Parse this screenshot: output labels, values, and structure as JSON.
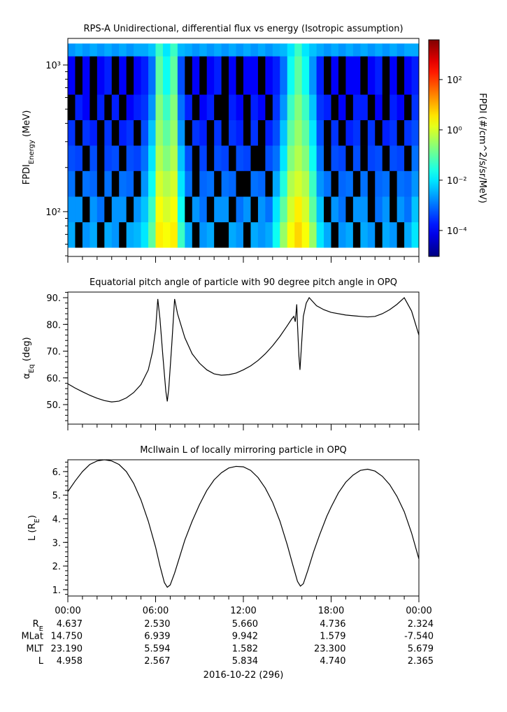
{
  "chart_data": [
    {
      "type": "heatmap",
      "title": "RPS-A Unidirectional, differential flux vs energy (Isotropic assumption)",
      "ylabel": [
        {
          "text": "FPDI"
        },
        {
          "text": "Energy",
          "sub": true
        },
        {
          "text": " (MeV)"
        }
      ],
      "ylog": true,
      "ylim": [
        49.5,
        1517
      ],
      "yticks": [
        {
          "value": 100,
          "label": "10²"
        },
        {
          "value": 1000,
          "label": "10³"
        }
      ],
      "xlim": [
        0,
        24
      ],
      "xticks": [
        0,
        6,
        12,
        18,
        24
      ],
      "xminor": 6,
      "time_bins": [
        0,
        0.5,
        1,
        1.5,
        2,
        2.5,
        3,
        3.5,
        4,
        4.5,
        5,
        5.5,
        6,
        6.5,
        7,
        7.5,
        8,
        8.5,
        9,
        9.5,
        10,
        10.5,
        11,
        11.5,
        12,
        12.5,
        13,
        13.5,
        14,
        14.5,
        15,
        15.5,
        16,
        16.5,
        17,
        17.5,
        18,
        18.5,
        19,
        19.5,
        20,
        20.5,
        21,
        21.5,
        22,
        22.5,
        23,
        23.5,
        24
      ],
      "energy_bins": [
        57,
        85,
        127,
        190,
        283,
        422,
        630,
        1150,
        1400
      ],
      "null_color": "#000000",
      "values": [
        [
          0.003,
          null,
          0.002,
          0.003,
          null,
          0.003,
          0.002,
          null,
          0.003,
          0.004,
          0.01,
          0.1,
          3,
          2,
          3,
          0.05,
          0.003,
          null,
          0.002,
          0.003,
          null,
          null,
          0.003,
          0.002,
          null,
          0.003,
          0.002,
          0.003,
          0.02,
          0.3,
          2,
          5,
          2,
          0.3,
          0.01,
          0.003,
          null,
          0.002,
          0.003,
          null,
          0.003,
          0.002,
          null,
          0.003,
          0.002,
          null,
          0.003,
          0.01
        ],
        [
          0.002,
          0.002,
          null,
          0.002,
          0.001,
          null,
          0.002,
          0.002,
          null,
          0.002,
          0.005,
          0.05,
          2,
          1,
          2,
          0.02,
          null,
          0.002,
          0.001,
          null,
          0.002,
          0.002,
          null,
          0.001,
          0.002,
          null,
          0.002,
          0.001,
          0.01,
          0.1,
          1,
          3,
          1,
          0.1,
          0.005,
          null,
          0.002,
          0.001,
          null,
          0.002,
          0.002,
          null,
          0.001,
          0.002,
          null,
          0.002,
          0.001,
          0.005
        ],
        [
          0.001,
          null,
          0.001,
          0.0008,
          null,
          0.001,
          null,
          0.001,
          0.0008,
          null,
          0.002,
          0.02,
          1,
          0.5,
          1,
          0.01,
          0.001,
          null,
          0.0008,
          0.001,
          null,
          0.001,
          0.0008,
          null,
          null,
          0.001,
          0.0008,
          null,
          0.003,
          0.03,
          0.5,
          1,
          0.5,
          0.05,
          0.002,
          0.001,
          null,
          0.0008,
          0.001,
          null,
          0.001,
          null,
          0.0008,
          0.001,
          null,
          0.001,
          0.0008,
          0.002
        ],
        [
          0.0005,
          0.0004,
          null,
          0.0005,
          null,
          0.0004,
          0.0005,
          null,
          0.0005,
          0.0004,
          0.001,
          0.01,
          0.5,
          0.2,
          0.5,
          0.005,
          0.0005,
          null,
          0.0004,
          null,
          0.0005,
          0.0004,
          null,
          0.0005,
          0.0004,
          null,
          null,
          0.0005,
          0.001,
          0.01,
          0.2,
          0.5,
          0.2,
          0.02,
          0.001,
          null,
          0.0005,
          0.0004,
          null,
          0.0005,
          null,
          0.0004,
          0.0005,
          null,
          0.0005,
          0.0004,
          null,
          0.001
        ],
        [
          0.0003,
          null,
          0.0003,
          0.0002,
          null,
          0.0003,
          null,
          0.0002,
          0.0003,
          null,
          0.0005,
          0.005,
          0.3,
          0.1,
          0.3,
          0.002,
          null,
          0.0003,
          0.0002,
          null,
          0.0003,
          null,
          0.0003,
          0.0002,
          null,
          0.0003,
          null,
          0.0002,
          0.0005,
          0.005,
          0.1,
          0.3,
          0.1,
          0.01,
          0.0005,
          null,
          0.0003,
          null,
          0.0002,
          0.0003,
          null,
          0.0003,
          null,
          0.0002,
          0.0003,
          null,
          0.0003,
          0.0005
        ],
        [
          null,
          0.0002,
          0.0001,
          null,
          0.0002,
          null,
          0.0002,
          null,
          0.0001,
          0.0002,
          0.0003,
          0.002,
          0.2,
          0.05,
          0.2,
          0.001,
          0.0002,
          null,
          0.0001,
          0.0002,
          null,
          null,
          0.0002,
          0.0001,
          null,
          0.0002,
          0.0001,
          null,
          0.0003,
          0.002,
          0.05,
          0.2,
          0.05,
          0.005,
          0.0003,
          0.0002,
          null,
          0.0001,
          null,
          0.0002,
          0.0002,
          null,
          0.0001,
          null,
          0.0002,
          0.0001,
          null,
          0.0003
        ],
        [
          0.0001,
          null,
          0.0001,
          null,
          0.0001,
          0.0002,
          null,
          0.0001,
          null,
          0.0001,
          0.0002,
          0.001,
          0.1,
          0.02,
          0.1,
          0.0005,
          null,
          0.0001,
          null,
          0.0001,
          0.0002,
          null,
          0.0001,
          null,
          0.0001,
          0.0001,
          null,
          0.0001,
          0.0002,
          0.001,
          0.02,
          0.1,
          0.02,
          0.002,
          0.0002,
          null,
          0.0001,
          null,
          0.0001,
          0.0001,
          null,
          0.0001,
          0.0002,
          null,
          0.0001,
          null,
          0.0001,
          0.0002
        ],
        [
          0.002,
          0.003,
          0.002,
          0.003,
          0.002,
          0.003,
          0.002,
          0.003,
          0.002,
          0.003,
          0.003,
          0.005,
          0.05,
          0.01,
          0.05,
          0.004,
          0.003,
          0.002,
          0.003,
          0.002,
          0.003,
          0.002,
          0.003,
          0.002,
          0.003,
          0.002,
          0.003,
          0.002,
          0.003,
          0.004,
          0.01,
          0.05,
          0.01,
          0.005,
          0.003,
          0.002,
          0.003,
          0.002,
          0.003,
          0.002,
          0.003,
          0.002,
          0.003,
          0.002,
          0.003,
          0.002,
          0.003,
          0.003
        ]
      ],
      "colorbar": {
        "label": "FPDI (#/cm^2/s/sr/MeV)",
        "log": true,
        "colormap": "jet",
        "lim": [
          9.3e-06,
          3800
        ],
        "ticks": [
          {
            "value": 0.0001,
            "label": "10⁻⁴"
          },
          {
            "value": 0.01,
            "label": "10⁻²"
          },
          {
            "value": 1,
            "label": "10⁰"
          },
          {
            "value": 100,
            "label": "10²"
          }
        ]
      }
    },
    {
      "type": "line",
      "title": "Equatorial pitch angle of particle with 90 degree pitch angle in OPQ",
      "ylabel": [
        {
          "text": "α"
        },
        {
          "text": "Eq",
          "sub": true
        },
        {
          "text": " (deg)"
        }
      ],
      "color": "#000000",
      "xlim": [
        0,
        24
      ],
      "xticks": [
        0,
        6,
        12,
        18,
        24
      ],
      "xminor": 6,
      "ylim": [
        42.7,
        92.1
      ],
      "yminor": 5,
      "yticks": [
        {
          "value": 50,
          "label": "50."
        },
        {
          "value": 60,
          "label": "60."
        },
        {
          "value": 70,
          "label": "70."
        },
        {
          "value": 80,
          "label": "80."
        },
        {
          "value": 90,
          "label": "90."
        }
      ],
      "x": [
        0,
        0.5,
        1,
        1.5,
        2,
        2.5,
        3,
        3.5,
        4,
        4.5,
        5,
        5.5,
        5.8,
        6,
        6.15,
        6.3,
        6.5,
        6.7,
        6.8,
        6.9,
        7.1,
        7.3,
        7.5,
        8,
        8.5,
        9,
        9.5,
        10,
        10.5,
        11,
        11.5,
        12,
        12.5,
        13,
        13.5,
        14,
        14.5,
        15,
        15.3,
        15.45,
        15.55,
        15.65,
        15.7,
        15.8,
        15.87,
        15.95,
        16.1,
        16.3,
        16.5,
        17,
        17.5,
        18,
        19,
        20,
        20.5,
        21,
        21.5,
        22,
        22.5,
        23,
        23.5,
        24
      ],
      "values": [
        57.8,
        56.2,
        54.8,
        53.5,
        52.4,
        51.5,
        51,
        51.3,
        52.5,
        54.5,
        57.5,
        63,
        70,
        78,
        89.5,
        82,
        68,
        55,
        51.2,
        56,
        72,
        89.5,
        84,
        75,
        69,
        65.5,
        63,
        61.5,
        61,
        61.2,
        61.8,
        63,
        64.5,
        66.5,
        69,
        72,
        75.5,
        79.5,
        82,
        83,
        81,
        87.5,
        80,
        68,
        63,
        70,
        83,
        88,
        90,
        87,
        85.5,
        84.5,
        83.5,
        83,
        82.8,
        83,
        84,
        85.5,
        87.5,
        90,
        85,
        76
      ]
    },
    {
      "type": "line",
      "title": "McIlwain L of locally mirroring particle in OPQ",
      "ylabel": [
        {
          "text": "L (R"
        },
        {
          "text": "E",
          "sub": true
        },
        {
          "text": ")"
        }
      ],
      "color": "#000000",
      "xlim": [
        0,
        24
      ],
      "xminor": 6,
      "xticks": [
        {
          "value": 0,
          "label": "00:00"
        },
        {
          "value": 6,
          "label": "06:00"
        },
        {
          "value": 12,
          "label": "12:00"
        },
        {
          "value": 18,
          "label": "18:00"
        },
        {
          "value": 24,
          "label": "00:00"
        }
      ],
      "ylim": [
        0.73,
        6.5
      ],
      "yminor": 5,
      "yticks": [
        {
          "value": 1,
          "label": "1."
        },
        {
          "value": 2,
          "label": "2."
        },
        {
          "value": 3,
          "label": "3."
        },
        {
          "value": 4,
          "label": "4."
        },
        {
          "value": 5,
          "label": "5."
        },
        {
          "value": 6,
          "label": "6."
        }
      ],
      "x": [
        0,
        0.5,
        1,
        1.5,
        2,
        2.5,
        3,
        3.5,
        4,
        4.5,
        5,
        5.5,
        6,
        6.3,
        6.6,
        6.8,
        7,
        7.3,
        7.7,
        8,
        8.5,
        9,
        9.5,
        10,
        10.5,
        11,
        11.5,
        12,
        12.5,
        13,
        13.5,
        14,
        14.5,
        15,
        15.4,
        15.7,
        15.9,
        16.1,
        16.4,
        16.8,
        17.2,
        17.7,
        18,
        18.5,
        19,
        19.5,
        20,
        20.5,
        21,
        21.5,
        22,
        22.5,
        23,
        23.5,
        24
      ],
      "values": [
        5.15,
        5.6,
        6,
        6.3,
        6.45,
        6.5,
        6.45,
        6.3,
        6,
        5.5,
        4.8,
        3.9,
        2.8,
        2,
        1.3,
        1.1,
        1.2,
        1.7,
        2.5,
        3.1,
        3.9,
        4.6,
        5.2,
        5.65,
        5.95,
        6.15,
        6.22,
        6.2,
        6.05,
        5.75,
        5.3,
        4.7,
        3.9,
        2.9,
        2,
        1.35,
        1.15,
        1.25,
        1.8,
        2.6,
        3.3,
        4.1,
        4.5,
        5.1,
        5.55,
        5.85,
        6.05,
        6.1,
        6.02,
        5.8,
        5.45,
        4.95,
        4.3,
        3.4,
        2.3
      ],
      "ephemeris": [
        {
          "label": [
            {
              "text": "R"
            },
            {
              "text": "E",
              "sub": true
            }
          ],
          "values": [
            "4.637",
            "2.530",
            "5.660",
            "4.736",
            "2.324"
          ]
        },
        {
          "label": [
            {
              "text": "MLat"
            }
          ],
          "values": [
            "14.750",
            "6.939",
            "9.942",
            "1.579",
            "-7.540"
          ]
        },
        {
          "label": [
            {
              "text": "MLT"
            }
          ],
          "values": [
            "23.190",
            "5.594",
            "1.582",
            "23.300",
            "5.679"
          ]
        },
        {
          "label": [
            {
              "text": "L"
            }
          ],
          "values": [
            "4.958",
            "2.567",
            "5.834",
            "4.740",
            "2.365"
          ]
        }
      ],
      "xlabel": "2016-10-22 (296)"
    }
  ]
}
